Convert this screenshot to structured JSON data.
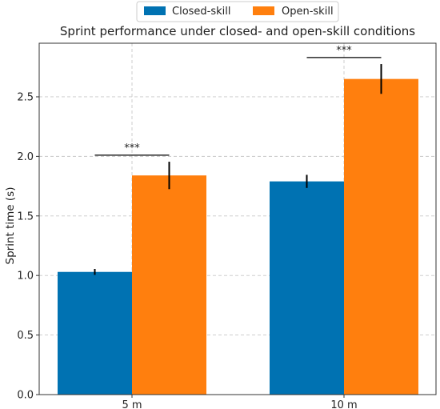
{
  "chart_data": {
    "type": "bar",
    "title": "Sprint performance under closed- and open-skill conditions",
    "xlabel": "",
    "ylabel": "Sprint time (s)",
    "categories": [
      "5 m",
      "10 m"
    ],
    "ylim": [
      0,
      2.95
    ],
    "yticks": [
      0.0,
      0.5,
      1.0,
      1.5,
      2.0,
      2.5
    ],
    "ytick_labels": [
      "0.0",
      "0.5",
      "1.0",
      "1.5",
      "2.0",
      "2.5"
    ],
    "grid": true,
    "legend_position": "top-center",
    "series": [
      {
        "name": "Closed-skill",
        "color": "#0072b2",
        "values": [
          1.03,
          1.79
        ],
        "errors": [
          0.025,
          0.055
        ]
      },
      {
        "name": "Open-skill",
        "color": "#ff7f0e",
        "values": [
          1.84,
          2.65
        ],
        "errors": [
          0.115,
          0.125
        ]
      }
    ],
    "annotations": [
      {
        "text": "***",
        "category": "5 m",
        "y": 2.01
      },
      {
        "text": "***",
        "category": "10 m",
        "y": 2.83
      }
    ]
  }
}
